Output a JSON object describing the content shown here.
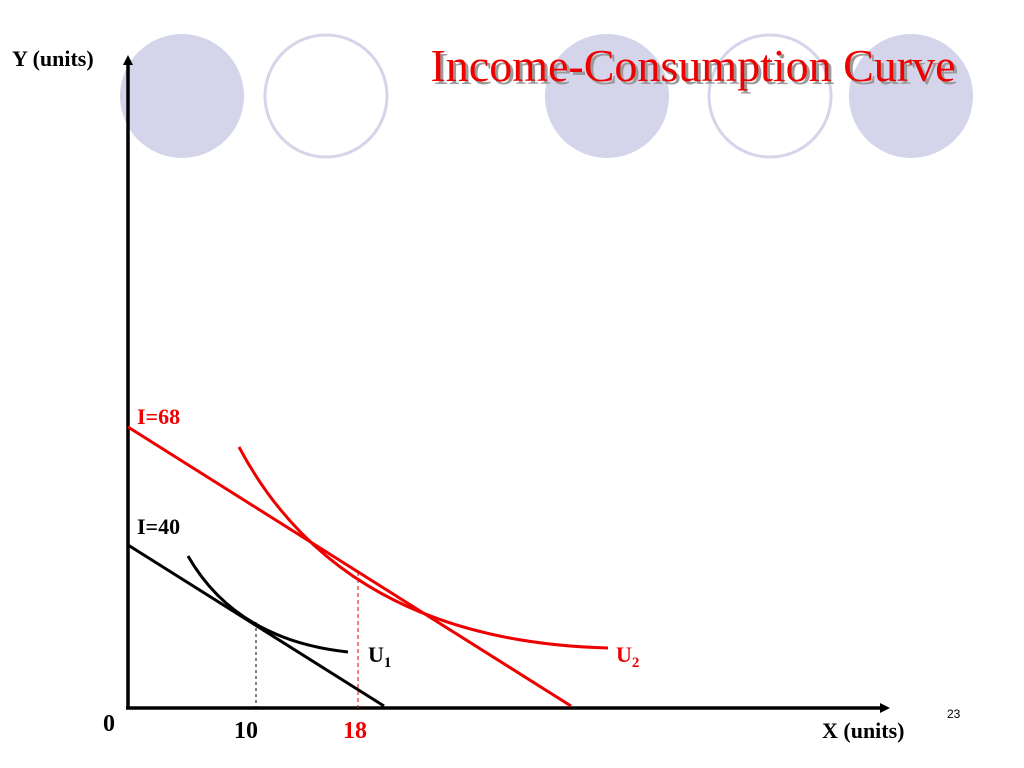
{
  "slide": {
    "title": "Income-Consumption Curve",
    "slide_number": "23"
  },
  "colors": {
    "title": "#ee0000",
    "red": "#ee0000",
    "black": "#000000",
    "circle_fill": "#d4d4ea",
    "circle_stroke": "#d4d4ea"
  },
  "decor_circles": [
    "filled",
    "outline",
    "filled",
    "outline",
    "filled"
  ],
  "diagram": {
    "y_axis_label": "Y (units)",
    "x_axis_label": "X (units)",
    "origin_label": "0",
    "budget_lines": [
      {
        "label": "I=68",
        "income": 68,
        "color_key": "red"
      },
      {
        "label": "I=40",
        "income": 40,
        "color_key": "black"
      }
    ],
    "indifference_curves": [
      {
        "label_main": "U",
        "label_sub": "1",
        "color_key": "black"
      },
      {
        "label_main": "U",
        "label_sub": "2",
        "color_key": "red"
      }
    ],
    "x_ticks": [
      {
        "label": "10",
        "value": 10,
        "color_key": "black"
      },
      {
        "label": "18",
        "value": 18,
        "color_key": "red"
      }
    ]
  }
}
